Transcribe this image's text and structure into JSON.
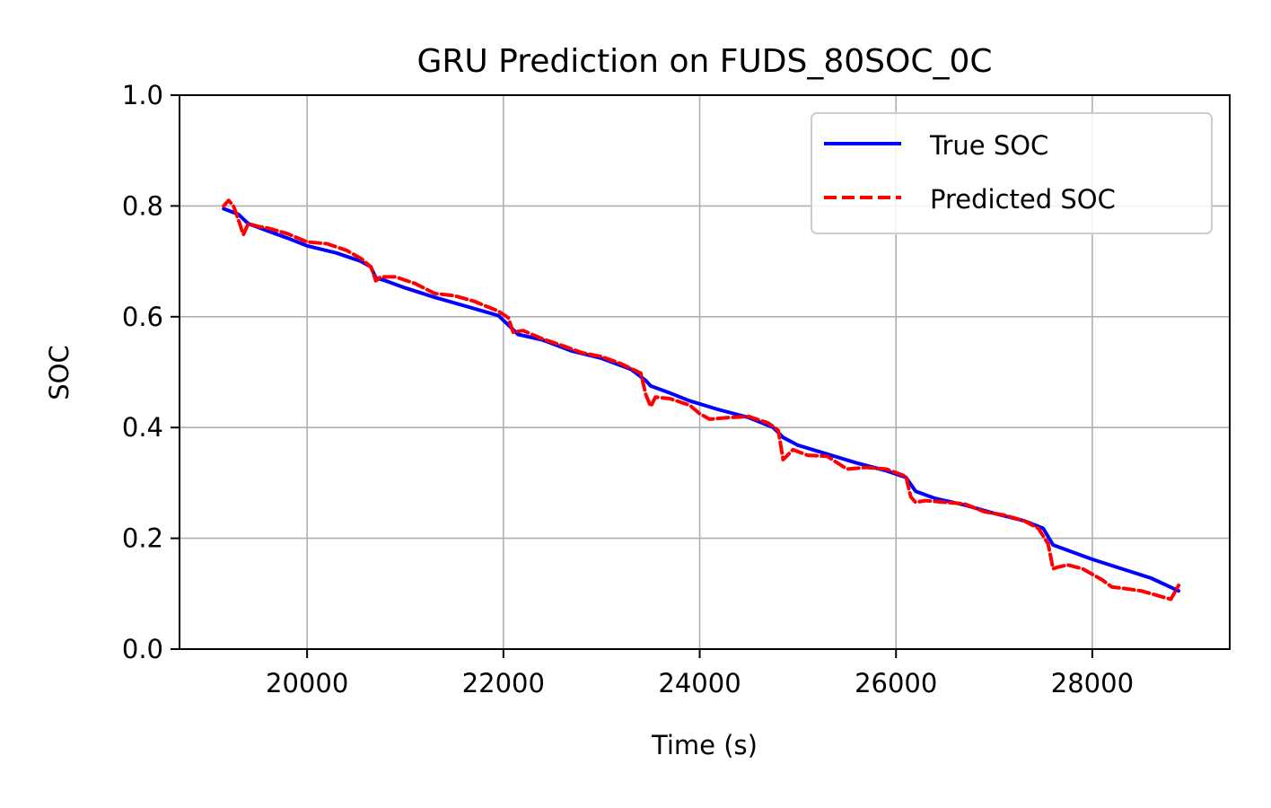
{
  "chart_data": {
    "type": "line",
    "title": "GRU Prediction on FUDS_80SOC_0C",
    "xlabel": "Time (s)",
    "ylabel": "SOC",
    "xlim": [
      18700,
      29400
    ],
    "ylim": [
      0.0,
      1.0
    ],
    "x_ticks": [
      20000,
      22000,
      24000,
      26000,
      28000
    ],
    "x_tick_labels": [
      "20000",
      "22000",
      "24000",
      "26000",
      "28000"
    ],
    "y_ticks": [
      0.0,
      0.2,
      0.4,
      0.6,
      0.8,
      1.0
    ],
    "y_tick_labels": [
      "0.0",
      "0.2",
      "0.4",
      "0.6",
      "0.8",
      "1.0"
    ],
    "grid": true,
    "legend_position": "top-right",
    "series": [
      {
        "name": "True SOC",
        "color": "#0000ff",
        "style": "solid",
        "x": [
          19150,
          19300,
          19400,
          19600,
          19800,
          20000,
          20300,
          20550,
          20650,
          20700,
          20800,
          21000,
          21300,
          21600,
          21950,
          22050,
          22150,
          22400,
          22700,
          23000,
          23300,
          23450,
          23500,
          23700,
          23900,
          24200,
          24500,
          24750,
          24850,
          25000,
          25300,
          25600,
          25900,
          26100,
          26200,
          26400,
          26700,
          27000,
          27300,
          27500,
          27600,
          27800,
          28000,
          28300,
          28600,
          28880
        ],
        "y": [
          0.795,
          0.785,
          0.768,
          0.755,
          0.742,
          0.728,
          0.715,
          0.7,
          0.69,
          0.67,
          0.665,
          0.652,
          0.635,
          0.62,
          0.602,
          0.585,
          0.568,
          0.558,
          0.538,
          0.525,
          0.505,
          0.485,
          0.475,
          0.462,
          0.448,
          0.432,
          0.418,
          0.4,
          0.382,
          0.368,
          0.352,
          0.336,
          0.322,
          0.31,
          0.285,
          0.272,
          0.26,
          0.245,
          0.232,
          0.218,
          0.188,
          0.175,
          0.162,
          0.145,
          0.128,
          0.105
        ]
      },
      {
        "name": "Predicted SOC",
        "color": "#ff0000",
        "style": "dashed",
        "x": [
          19150,
          19200,
          19250,
          19300,
          19350,
          19400,
          19500,
          19600,
          19800,
          20000,
          20200,
          20400,
          20550,
          20650,
          20700,
          20750,
          20900,
          21100,
          21300,
          21500,
          21700,
          21950,
          22050,
          22100,
          22200,
          22400,
          22600,
          22800,
          23000,
          23200,
          23400,
          23450,
          23500,
          23550,
          23700,
          23900,
          24000,
          24100,
          24300,
          24500,
          24700,
          24800,
          24850,
          24950,
          25100,
          25300,
          25500,
          25700,
          25900,
          26100,
          26150,
          26200,
          26300,
          26500,
          26700,
          26900,
          27100,
          27300,
          27450,
          27550,
          27600,
          27650,
          27750,
          27900,
          28100,
          28200,
          28300,
          28500,
          28700,
          28800,
          28880
        ],
        "y": [
          0.8,
          0.81,
          0.8,
          0.775,
          0.748,
          0.768,
          0.763,
          0.76,
          0.75,
          0.735,
          0.732,
          0.72,
          0.705,
          0.69,
          0.665,
          0.672,
          0.672,
          0.66,
          0.642,
          0.638,
          0.628,
          0.61,
          0.598,
          0.572,
          0.575,
          0.56,
          0.548,
          0.535,
          0.528,
          0.515,
          0.498,
          0.46,
          0.438,
          0.455,
          0.452,
          0.44,
          0.425,
          0.415,
          0.418,
          0.42,
          0.408,
          0.395,
          0.342,
          0.36,
          0.35,
          0.348,
          0.325,
          0.328,
          0.325,
          0.312,
          0.275,
          0.265,
          0.268,
          0.265,
          0.262,
          0.248,
          0.242,
          0.232,
          0.218,
          0.19,
          0.145,
          0.148,
          0.152,
          0.145,
          0.125,
          0.112,
          0.11,
          0.105,
          0.095,
          0.09,
          0.115
        ]
      }
    ]
  }
}
